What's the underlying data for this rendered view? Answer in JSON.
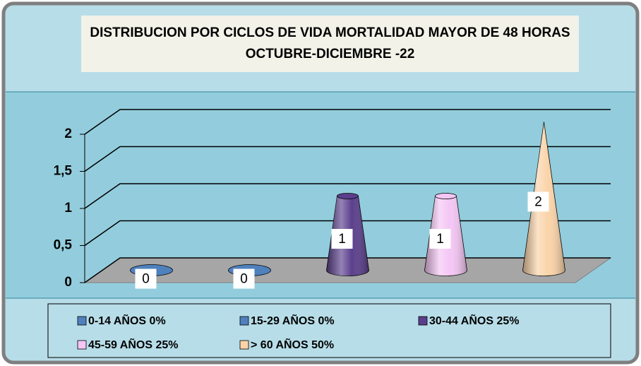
{
  "chart_data": {
    "type": "cone",
    "title": "DISTRIBUCION POR CICLOS DE VIDA MORTALIDAD MAYOR DE 48 HORAS OCTUBRE-DICIEMBRE -22",
    "series": [
      {
        "name": "0-14 AÑOS 0%",
        "color": "#4f81bd",
        "values": [
          0
        ]
      },
      {
        "name": "15-29 AÑOS 0%",
        "color": "#4f81bd",
        "values": [
          0
        ]
      },
      {
        "name": "30-44 AÑOS 25%",
        "color": "#5b3f8c",
        "values": [
          1
        ]
      },
      {
        "name": "45-59 AÑOS 25%",
        "color": "#f4c6f4",
        "values": [
          1
        ]
      },
      {
        "name": "> 60 AÑOS 50%",
        "color": "#fad3a8",
        "values": [
          2
        ]
      }
    ],
    "ylim": [
      0,
      2
    ],
    "yticks": [
      0,
      {
        "value": 0.5,
        "label": "0,5"
      },
      1,
      {
        "value": 1.5,
        "label": "1,5"
      },
      2
    ],
    "grid": true,
    "legend": "bottom"
  }
}
